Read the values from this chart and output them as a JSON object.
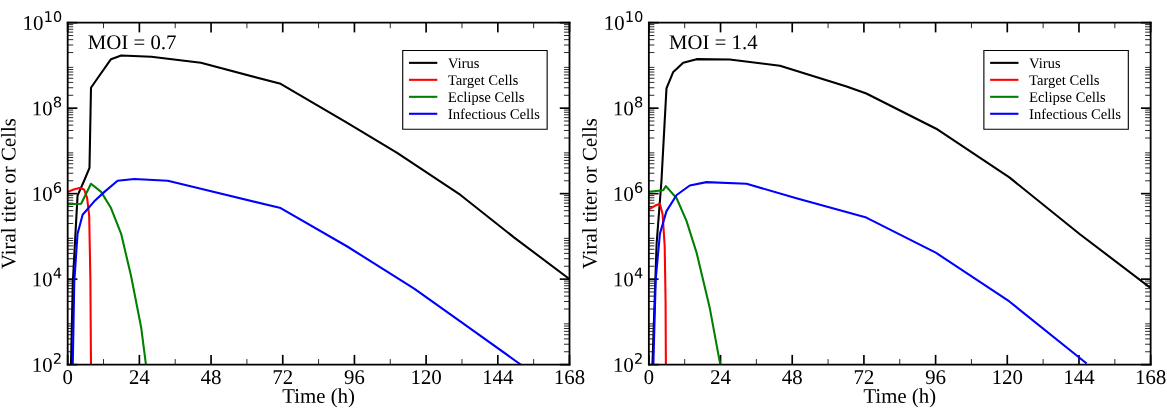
{
  "chart_data": [
    {
      "type": "line",
      "xlabel": "Time (h)",
      "ylabel": "Viral titer or Cells",
      "annotations": [
        "MOI = 0.7"
      ],
      "log": "y",
      "legend": "top right",
      "grid": false,
      "xlim": [
        0,
        168
      ],
      "xticks": [
        0,
        24,
        48,
        72,
        96,
        120,
        144,
        168
      ],
      "ylim": [
        100,
        10000000000
      ],
      "yticks": [
        {
          "value": 100,
          "label": "10$^{2}$"
        },
        {
          "value": 10000,
          "label": "10$^{4}$"
        },
        {
          "value": 1000000,
          "label": "10$^{6}$"
        },
        {
          "value": 100000000,
          "label": "10$^{8}$"
        },
        {
          "value": 10000000000,
          "label": "10$^{10}$"
        }
      ],
      "series": [
        {
          "name": "Virus",
          "color": "#000000",
          "x": [
            1.1,
            1.7,
            3.3,
            5.5,
            7.3,
            7.8,
            10,
            14.5,
            17.9,
            28,
            44.6,
            71.3,
            93.6,
            110.3,
            131.5,
            149.4,
            168
          ],
          "values": [
            100,
            8000,
            900000,
            2000000,
            4000000,
            300000000,
            500000000,
            1400000000,
            1700000000,
            1600000000,
            1150000000,
            370000000,
            45000000,
            9000000,
            930000,
            95000,
            10000
          ]
        },
        {
          "name": "Target Cells",
          "color": "#ff0000",
          "x": [
            0,
            2,
            4,
            5.5,
            6.5,
            7.2,
            7.6,
            7.8
          ],
          "values": [
            1100000,
            1250000,
            1350000,
            1250000,
            800000,
            300000,
            10000,
            100
          ]
        },
        {
          "name": "Eclipse Cells",
          "color": "#008000",
          "x": [
            0,
            4.5,
            7.8,
            11.2,
            14.5,
            17.9,
            21.2,
            24.6,
            26.2
          ],
          "values": [
            570000,
            580000,
            1700000,
            1100000,
            460000,
            115000,
            12000,
            740,
            100
          ]
        },
        {
          "name": "Infectious Cells",
          "color": "#0000ff",
          "x": [
            1.7,
            2.2,
            3.3,
            5,
            8.9,
            12.3,
            16.7,
            22.3,
            33.5,
            44.6,
            71.3,
            93.6,
            116,
            132.6,
            151.7
          ],
          "values": [
            100,
            8500,
            115000,
            320000,
            660000,
            1100000,
            2000000,
            2200000,
            2000000,
            1300000,
            460000,
            58000,
            6000,
            900,
            100
          ]
        }
      ]
    },
    {
      "type": "line",
      "xlabel": "Time (h)",
      "ylabel": "Viral titer or Cells",
      "annotations": [
        "MOI = 1.4"
      ],
      "log": "y",
      "legend": "top right",
      "grid": false,
      "xlim": [
        0,
        168
      ],
      "xticks": [
        0,
        24,
        48,
        72,
        96,
        120,
        144,
        168
      ],
      "ylim": [
        100,
        10000000000
      ],
      "yticks": [
        {
          "value": 100,
          "label": "10$^{2}$"
        },
        {
          "value": 10000,
          "label": "10$^{4}$"
        },
        {
          "value": 1000000,
          "label": "10$^{6}$"
        },
        {
          "value": 100000000,
          "label": "10$^{8}$"
        },
        {
          "value": 10000000000,
          "label": "10$^{10}$"
        }
      ],
      "series": [
        {
          "name": "Virus",
          "color": "#000000",
          "x": [
            1.2,
            2.6,
            4.2,
            5.9,
            8.1,
            11.5,
            16,
            27.1,
            43.9,
            66.2,
            72.8,
            96.2,
            120.7,
            144.1,
            168
          ],
          "values": [
            100,
            68000,
            1900000,
            290000000,
            690000000,
            1150000000,
            1400000000,
            1380000000,
            980000000,
            320000000,
            220000000,
            33000000,
            2400000,
            115000,
            6200
          ]
        },
        {
          "name": "Target Cells",
          "color": "#ff0000",
          "x": [
            0,
            2,
            3.7,
            4.6,
            5.3,
            5.6,
            5.7
          ],
          "values": [
            430000,
            520000,
            580000,
            330000,
            60000,
            3000,
            100
          ]
        },
        {
          "name": "Eclipse Cells",
          "color": "#008000",
          "x": [
            0,
            4.8,
            5.7,
            9.3,
            12.6,
            16,
            20.4,
            23.8
          ],
          "values": [
            1100000,
            1200000,
            1500000,
            780000,
            230000,
            41000,
            2100,
            110
          ]
        },
        {
          "name": "Infectious Cells",
          "color": "#0000ff",
          "x": [
            1.5,
            2.3,
            3.7,
            5.9,
            9.3,
            13.7,
            19.3,
            32.7,
            49.4,
            72.8,
            96.2,
            120.7,
            146.3
          ],
          "values": [
            100,
            10000,
            115000,
            390000,
            930000,
            1550000,
            1860000,
            1700000,
            780000,
            275000,
            41000,
            3000,
            110
          ]
        }
      ]
    }
  ]
}
